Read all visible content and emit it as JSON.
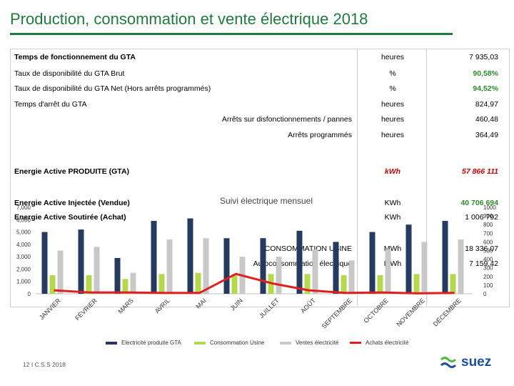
{
  "slide": {
    "title": "Production, consommation et vente électrique 2018",
    "footer": "12 I C.S.S 2018",
    "logo_text": "suez",
    "brand_color": "#1f7a3e"
  },
  "table": {
    "rows": [
      {
        "label": "Temps de fonctionnement du GTA",
        "unit": "heures",
        "value": "7 935,03"
      },
      {
        "label": "Taux de disponibilité du GTA Brut",
        "unit": "%",
        "value": "90,58%"
      },
      {
        "label": "Taux de disponibilité du GTA Net (Hors arrêts programmés)",
        "unit": "%",
        "value": "94,52%"
      },
      {
        "label": "Temps d'arrêt du GTA",
        "unit": "heures",
        "value": "824,97"
      },
      {
        "label": "Arrêts sur disfonctionnements / pannes",
        "unit": "heures",
        "value": "460,48"
      },
      {
        "label": "Arrêts programmés",
        "unit": "heures",
        "value": "364,49"
      },
      {
        "label": "Energie Active PRODUITE (GTA)",
        "unit": "kWh",
        "value": "57 866 111"
      },
      {
        "label": "Energie Active Injectée (Vendue)",
        "unit": "KWh",
        "value": "40 706 694"
      },
      {
        "label": "Energie Active Soutirée (Achat)",
        "unit": "KWh",
        "value": "1 006 792"
      },
      {
        "label": "CONSOMMATION USINE",
        "unit": "MWh",
        "value": "18 336,07"
      },
      {
        "label": "Autoconsommation électrique",
        "unit": "MWh",
        "value": "7 159,42"
      }
    ]
  },
  "chart_data": {
    "type": "bar",
    "title": "Suivi électrique mensuel",
    "categories": [
      "JANVIER",
      "FÉVRIER",
      "MARS",
      "AVRIL",
      "MAI",
      "JUIN",
      "JUILLET",
      "AOÛT",
      "SEPTEMBRE",
      "OCTOBRE",
      "NOVEMBRE",
      "DÉCEMBRE"
    ],
    "ylim_left": [
      0,
      7000
    ],
    "left_ticks": [
      "0",
      "1,000",
      "2,000",
      "3,000",
      "4,000",
      "5,000",
      "6,000",
      "7,000"
    ],
    "ylim_right": [
      0,
      1000
    ],
    "right_ticks": [
      "0",
      "100",
      "200",
      "300",
      "400",
      "500",
      "600",
      "700",
      "800",
      "900",
      "1000"
    ],
    "series": [
      {
        "name": "Electricité produite GTA",
        "color": "#243a5e",
        "axis": "left",
        "type": "bar",
        "values": [
          5000,
          5200,
          2900,
          5900,
          6100,
          4500,
          4500,
          5100,
          4200,
          5000,
          5600,
          5900
        ]
      },
      {
        "name": "Consommation Usine",
        "color": "#b4d94b",
        "axis": "left",
        "type": "bar",
        "values": [
          1500,
          1500,
          1200,
          1600,
          1700,
          1600,
          1600,
          1600,
          1500,
          1500,
          1600,
          1600
        ]
      },
      {
        "name": "Ventes électricité",
        "color": "#c8c8c8",
        "axis": "left",
        "type": "bar",
        "values": [
          3500,
          3800,
          1700,
          4400,
          4500,
          3000,
          3000,
          3600,
          2700,
          3600,
          4200,
          4400
        ]
      },
      {
        "name": "Achats électricité",
        "color": "#e02020",
        "axis": "right",
        "type": "line",
        "values": [
          40,
          15,
          15,
          10,
          10,
          230,
          120,
          40,
          10,
          15,
          5,
          10
        ]
      }
    ]
  }
}
